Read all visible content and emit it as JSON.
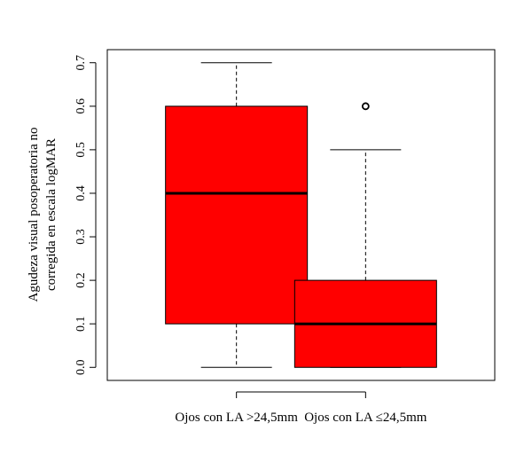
{
  "chart_data": {
    "type": "boxplot",
    "title": "",
    "xlabel": "",
    "ylabel_lines": [
      "Agudeza visual posoperatoria no",
      "corregida en escala logMAR"
    ],
    "categories": [
      "Ojos con LA >24,5mm",
      "Ojos con LA ≤24,5mm"
    ],
    "ylim": [
      -0.03,
      0.73
    ],
    "yticks": [
      0.0,
      0.1,
      0.2,
      0.3,
      0.4,
      0.5,
      0.6,
      0.7
    ],
    "ytick_labels": [
      "0.0",
      "0.1",
      "0.2",
      "0.3",
      "0.4",
      "0.5",
      "0.6",
      "0.7"
    ],
    "boxes": [
      {
        "min": 0.0,
        "q1": 0.1,
        "median": 0.4,
        "q3": 0.6,
        "max": 0.7,
        "outliers": []
      },
      {
        "min": 0.0,
        "q1": 0.0,
        "median": 0.1,
        "q3": 0.2,
        "max": 0.5,
        "outliers": [
          0.6
        ]
      }
    ],
    "box_fill": "#ff0000",
    "grid": false
  }
}
